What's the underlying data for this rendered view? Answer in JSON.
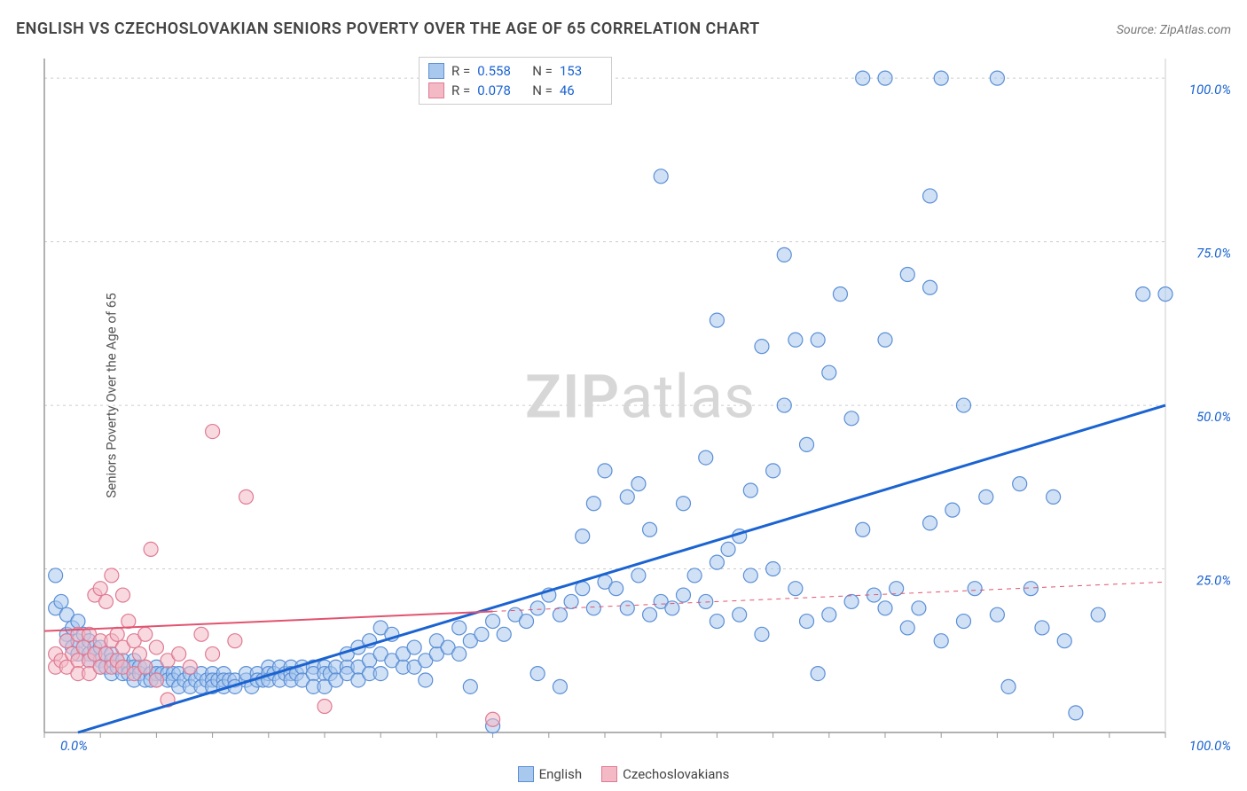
{
  "header": {
    "title": "ENGLISH VS CZECHOSLOVAKIAN SENIORS POVERTY OVER THE AGE OF 65 CORRELATION CHART",
    "source_prefix": "Source: ",
    "source_name": "ZipAtlas.com"
  },
  "ylabel": "Seniors Poverty Over the Age of 65",
  "watermark": {
    "a": "ZIP",
    "b": "atlas"
  },
  "chart": {
    "type": "scatter",
    "background_color": "#ffffff",
    "grid_color": "#cccccc",
    "axis_color": "#999999",
    "xlim": [
      0,
      100
    ],
    "ylim": [
      0,
      103
    ],
    "yticks": [
      25,
      50,
      75,
      100
    ],
    "ytick_labels": [
      "25.0%",
      "50.0%",
      "75.0%",
      "100.0%"
    ],
    "xtick_labels": {
      "min": "0.0%",
      "max": "100.0%"
    },
    "xtick_positions": [
      0,
      5,
      10,
      15,
      20,
      25,
      30,
      35,
      40,
      45,
      50,
      55,
      60,
      65,
      70,
      75,
      80,
      85,
      90,
      95,
      100
    ],
    "marker_radius": 8,
    "marker_opacity": 0.55,
    "series": [
      {
        "name": "English",
        "label": "English",
        "color_fill": "#a9c8ee",
        "color_stroke": "#5b8fd6",
        "R": "0.558",
        "N": "153",
        "regression": {
          "x1": 3,
          "y1": 0,
          "x2": 100,
          "y2": 50,
          "color": "#1a63d1",
          "width": 3,
          "dash_after_x": null
        },
        "points": [
          [
            1,
            24
          ],
          [
            1,
            19
          ],
          [
            1.5,
            20
          ],
          [
            2,
            18
          ],
          [
            2,
            15
          ],
          [
            2,
            14
          ],
          [
            2.5,
            16
          ],
          [
            2.5,
            13
          ],
          [
            3,
            17
          ],
          [
            3,
            14
          ],
          [
            3,
            12
          ],
          [
            3.5,
            15
          ],
          [
            3.5,
            13
          ],
          [
            4,
            14
          ],
          [
            4,
            12
          ],
          [
            4,
            11
          ],
          [
            4.5,
            13
          ],
          [
            4.5,
            12
          ],
          [
            5,
            13
          ],
          [
            5,
            11
          ],
          [
            5,
            10
          ],
          [
            5.5,
            12
          ],
          [
            5.5,
            10
          ],
          [
            6,
            12
          ],
          [
            6,
            11
          ],
          [
            6,
            9
          ],
          [
            6.5,
            11
          ],
          [
            6.5,
            10
          ],
          [
            7,
            11
          ],
          [
            7,
            9
          ],
          [
            7.5,
            10
          ],
          [
            7.5,
            9
          ],
          [
            8,
            11
          ],
          [
            8,
            10
          ],
          [
            8,
            8
          ],
          [
            8.5,
            10
          ],
          [
            8.5,
            9
          ],
          [
            9,
            10
          ],
          [
            9,
            8
          ],
          [
            9.5,
            9
          ],
          [
            9.5,
            8
          ],
          [
            10,
            10
          ],
          [
            10,
            9
          ],
          [
            10,
            8
          ],
          [
            10.5,
            9
          ],
          [
            11,
            9
          ],
          [
            11,
            8
          ],
          [
            11.5,
            9
          ],
          [
            11.5,
            8
          ],
          [
            12,
            9
          ],
          [
            12,
            7
          ],
          [
            12.5,
            8
          ],
          [
            13,
            9
          ],
          [
            13,
            7
          ],
          [
            13.5,
            8
          ],
          [
            14,
            9
          ],
          [
            14,
            7
          ],
          [
            14.5,
            8
          ],
          [
            15,
            9
          ],
          [
            15,
            8
          ],
          [
            15,
            7
          ],
          [
            15.5,
            8
          ],
          [
            16,
            9
          ],
          [
            16,
            8
          ],
          [
            16,
            7
          ],
          [
            16.5,
            8
          ],
          [
            17,
            8
          ],
          [
            17,
            7
          ],
          [
            18,
            8
          ],
          [
            18,
            9
          ],
          [
            18.5,
            7
          ],
          [
            19,
            9
          ],
          [
            19,
            8
          ],
          [
            19.5,
            8
          ],
          [
            20,
            10
          ],
          [
            20,
            9
          ],
          [
            20,
            8
          ],
          [
            20.5,
            9
          ],
          [
            21,
            10
          ],
          [
            21,
            8
          ],
          [
            21.5,
            9
          ],
          [
            22,
            10
          ],
          [
            22,
            9
          ],
          [
            22,
            8
          ],
          [
            22.5,
            9
          ],
          [
            23,
            10
          ],
          [
            23,
            8
          ],
          [
            24,
            10
          ],
          [
            24,
            9
          ],
          [
            24,
            7
          ],
          [
            25,
            10
          ],
          [
            25,
            9
          ],
          [
            25,
            7
          ],
          [
            25.5,
            9
          ],
          [
            26,
            10
          ],
          [
            26,
            8
          ],
          [
            27,
            10
          ],
          [
            27,
            9
          ],
          [
            27,
            12
          ],
          [
            28,
            10
          ],
          [
            28,
            8
          ],
          [
            28,
            13
          ],
          [
            29,
            11
          ],
          [
            29,
            9
          ],
          [
            29,
            14
          ],
          [
            30,
            12
          ],
          [
            30,
            9
          ],
          [
            30,
            16
          ],
          [
            31,
            11
          ],
          [
            31,
            15
          ],
          [
            32,
            10
          ],
          [
            32,
            12
          ],
          [
            33,
            13
          ],
          [
            33,
            10
          ],
          [
            34,
            11
          ],
          [
            34,
            8
          ],
          [
            35,
            12
          ],
          [
            35,
            14
          ],
          [
            36,
            13
          ],
          [
            37,
            12
          ],
          [
            37,
            16
          ],
          [
            38,
            14
          ],
          [
            38,
            7
          ],
          [
            39,
            15
          ],
          [
            40,
            17
          ],
          [
            40,
            1
          ],
          [
            41,
            15
          ],
          [
            42,
            18
          ],
          [
            43,
            17
          ],
          [
            44,
            19
          ],
          [
            44,
            9
          ],
          [
            45,
            21
          ],
          [
            46,
            18
          ],
          [
            46,
            7
          ],
          [
            47,
            20
          ],
          [
            48,
            22
          ],
          [
            48,
            30
          ],
          [
            49,
            19
          ],
          [
            49,
            35
          ],
          [
            50,
            23
          ],
          [
            50,
            40
          ],
          [
            51,
            22
          ],
          [
            52,
            36
          ],
          [
            52,
            19
          ],
          [
            53,
            38
          ],
          [
            53,
            24
          ],
          [
            54,
            31
          ],
          [
            54,
            18
          ],
          [
            55,
            85
          ],
          [
            55,
            20
          ],
          [
            56,
            19
          ],
          [
            57,
            35
          ],
          [
            57,
            21
          ],
          [
            58,
            24
          ],
          [
            59,
            42
          ],
          [
            59,
            20
          ],
          [
            60,
            63
          ],
          [
            60,
            26
          ],
          [
            60,
            17
          ],
          [
            61,
            28
          ],
          [
            62,
            30
          ],
          [
            62,
            18
          ],
          [
            63,
            37
          ],
          [
            63,
            24
          ],
          [
            64,
            59
          ],
          [
            64,
            15
          ],
          [
            65,
            25
          ],
          [
            65,
            40
          ],
          [
            66,
            50
          ],
          [
            66,
            73
          ],
          [
            67,
            60
          ],
          [
            67,
            22
          ],
          [
            68,
            17
          ],
          [
            68,
            44
          ],
          [
            69,
            60
          ],
          [
            69,
            9
          ],
          [
            70,
            18
          ],
          [
            70,
            55
          ],
          [
            71,
            67
          ],
          [
            72,
            20
          ],
          [
            72,
            48
          ],
          [
            73,
            100
          ],
          [
            73,
            31
          ],
          [
            74,
            21
          ],
          [
            75,
            100
          ],
          [
            75,
            60
          ],
          [
            75,
            19
          ],
          [
            76,
            22
          ],
          [
            77,
            70
          ],
          [
            77,
            16
          ],
          [
            78,
            19
          ],
          [
            79,
            68
          ],
          [
            79,
            32
          ],
          [
            79,
            82
          ],
          [
            80,
            14
          ],
          [
            80,
            100
          ],
          [
            81,
            34
          ],
          [
            82,
            17
          ],
          [
            82,
            50
          ],
          [
            83,
            22
          ],
          [
            84,
            36
          ],
          [
            85,
            18
          ],
          [
            85,
            100
          ],
          [
            86,
            7
          ],
          [
            87,
            38
          ],
          [
            88,
            22
          ],
          [
            89,
            16
          ],
          [
            90,
            36
          ],
          [
            91,
            14
          ],
          [
            92,
            3
          ],
          [
            94,
            18
          ],
          [
            98,
            67
          ],
          [
            100,
            67
          ]
        ]
      },
      {
        "name": "Czechoslovakians",
        "label": "Czechoslovakians",
        "color_fill": "#f3b9c5",
        "color_stroke": "#e07a94",
        "R": "0.078",
        "N": "46",
        "regression": {
          "x1": 0,
          "y1": 15.5,
          "x2": 100,
          "y2": 23,
          "color": "#e2536f",
          "width": 2,
          "dash_after_x": 40
        },
        "points": [
          [
            1,
            12
          ],
          [
            1,
            10
          ],
          [
            1.5,
            11
          ],
          [
            2,
            14
          ],
          [
            2,
            10
          ],
          [
            2.5,
            12
          ],
          [
            3,
            15
          ],
          [
            3,
            11
          ],
          [
            3,
            9
          ],
          [
            3.5,
            13
          ],
          [
            4,
            15
          ],
          [
            4,
            11
          ],
          [
            4,
            9
          ],
          [
            4.5,
            12
          ],
          [
            4.5,
            21
          ],
          [
            5,
            14
          ],
          [
            5,
            10
          ],
          [
            5,
            22
          ],
          [
            5.5,
            12
          ],
          [
            5.5,
            20
          ],
          [
            6,
            14
          ],
          [
            6,
            10
          ],
          [
            6,
            24
          ],
          [
            6.5,
            15
          ],
          [
            6.5,
            11
          ],
          [
            7,
            21
          ],
          [
            7,
            13
          ],
          [
            7,
            10
          ],
          [
            7.5,
            17
          ],
          [
            8,
            14
          ],
          [
            8,
            9
          ],
          [
            8.5,
            12
          ],
          [
            9,
            15
          ],
          [
            9,
            10
          ],
          [
            9.5,
            28
          ],
          [
            10,
            13
          ],
          [
            10,
            8
          ],
          [
            11,
            11
          ],
          [
            11,
            5
          ],
          [
            12,
            12
          ],
          [
            13,
            10
          ],
          [
            14,
            15
          ],
          [
            15,
            12
          ],
          [
            15,
            46
          ],
          [
            17,
            14
          ],
          [
            18,
            36
          ],
          [
            25,
            4
          ],
          [
            40,
            2
          ]
        ]
      }
    ]
  },
  "legend_top": {
    "r_label": "R =",
    "n_label": "N ="
  },
  "legend_bottom": {
    "items": [
      "English",
      "Czechoslovakians"
    ]
  }
}
